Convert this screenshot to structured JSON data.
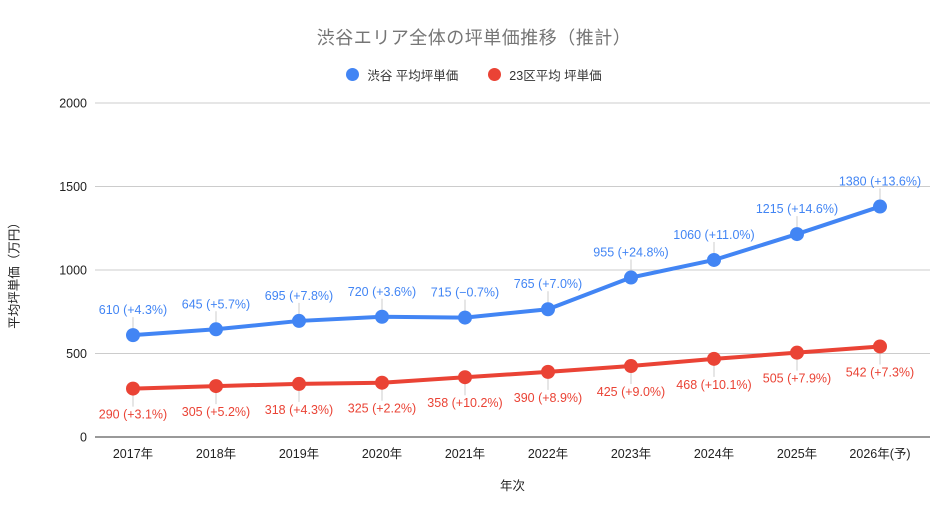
{
  "chart_data": {
    "type": "line",
    "title": "渋谷エリア全体の坪単価推移（推計）",
    "xlabel": "年次",
    "ylabel": "平均坪単価（万円）",
    "categories": [
      "2017年",
      "2018年",
      "2019年",
      "2020年",
      "2021年",
      "2022年",
      "2023年",
      "2024年",
      "2025年",
      "2026年(予)"
    ],
    "series": [
      {
        "name": "渋谷 平均坪単価",
        "color": "#4285F4",
        "values": [
          610,
          645,
          695,
          720,
          715,
          765,
          955,
          1060,
          1215,
          1380
        ],
        "point_labels": [
          "610 (+4.3%)",
          "645 (+5.7%)",
          "695 (+7.8%)",
          "720 (+3.6%)",
          "715 (−0.7%)",
          "765 (+7.0%)",
          "955 (+24.8%)",
          "1060 (+11.0%)",
          "1215 (+14.6%)",
          "1380 (+13.6%)"
        ],
        "label_position": "above"
      },
      {
        "name": "23区平均 坪単価",
        "color": "#EA4335",
        "values": [
          290,
          305,
          318,
          325,
          358,
          390,
          425,
          468,
          505,
          542
        ],
        "point_labels": [
          "290 (+3.1%)",
          "305 (+5.2%)",
          "318 (+4.3%)",
          "325 (+2.2%)",
          "358 (+10.2%)",
          "390 (+8.9%)",
          "425 (+9.0%)",
          "468 (+10.1%)",
          "505 (+7.9%)",
          "542 (+7.3%)"
        ],
        "label_position": "below"
      }
    ],
    "yticks": [
      0,
      500,
      1000,
      1500,
      2000
    ],
    "ylim": [
      0,
      2000
    ],
    "grid": true,
    "legend_position": "top",
    "colors": {
      "gridline": "#cccccc",
      "baseline": "#333333",
      "tick_text": "#222222",
      "title_text": "#757575",
      "stem": "#cccccc",
      "background": "#ffffff"
    }
  }
}
